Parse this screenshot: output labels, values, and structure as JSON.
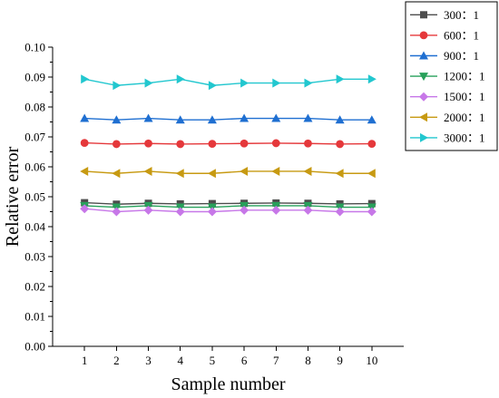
{
  "chart_data": {
    "type": "line",
    "title": "",
    "xlabel": "Sample number",
    "ylabel": "Relative error",
    "x": [
      1,
      2,
      3,
      4,
      5,
      6,
      7,
      8,
      9,
      10
    ],
    "xticks": [
      "1",
      "2",
      "3",
      "4",
      "5",
      "6",
      "7",
      "8",
      "9",
      "10"
    ],
    "xlim": [
      0,
      11
    ],
    "ylim": [
      0.0,
      0.1
    ],
    "yticks": [
      "0.00",
      "0.01",
      "0.02",
      "0.03",
      "0.04",
      "0.05",
      "0.06",
      "0.07",
      "0.08",
      "0.09",
      "0.10"
    ],
    "grid": false,
    "legend_position": "top-right",
    "series": [
      {
        "name": "300：1",
        "color": "#4d4d4d",
        "marker": "square",
        "values": [
          0.048,
          0.0475,
          0.0478,
          0.0476,
          0.0477,
          0.0478,
          0.0479,
          0.0478,
          0.0476,
          0.0477
        ]
      },
      {
        "name": "600：1",
        "color": "#e5383b",
        "marker": "circle",
        "values": [
          0.068,
          0.0676,
          0.0678,
          0.0676,
          0.0677,
          0.0678,
          0.0679,
          0.0678,
          0.0676,
          0.0677
        ]
      },
      {
        "name": "900：1",
        "color": "#1f6fd1",
        "marker": "triangle-up",
        "values": [
          0.0762,
          0.0757,
          0.0762,
          0.0757,
          0.0757,
          0.0762,
          0.0762,
          0.0762,
          0.0757,
          0.0757
        ]
      },
      {
        "name": "1200：1",
        "color": "#27a05a",
        "marker": "triangle-down",
        "values": [
          0.047,
          0.0465,
          0.047,
          0.0465,
          0.0465,
          0.047,
          0.047,
          0.047,
          0.0465,
          0.0465
        ]
      },
      {
        "name": "1500：1",
        "color": "#c777e8",
        "marker": "diamond",
        "values": [
          0.046,
          0.045,
          0.0455,
          0.045,
          0.045,
          0.0455,
          0.0455,
          0.0455,
          0.045,
          0.045
        ]
      },
      {
        "name": "2000：1",
        "color": "#c79a12",
        "marker": "triangle-left",
        "values": [
          0.0585,
          0.0578,
          0.0585,
          0.0578,
          0.0578,
          0.0585,
          0.0585,
          0.0585,
          0.0578,
          0.0578
        ]
      },
      {
        "name": "3000：1",
        "color": "#22c7cf",
        "marker": "triangle-right",
        "values": [
          0.0893,
          0.0872,
          0.088,
          0.0893,
          0.0872,
          0.088,
          0.088,
          0.088,
          0.0893,
          0.0893
        ]
      }
    ]
  }
}
